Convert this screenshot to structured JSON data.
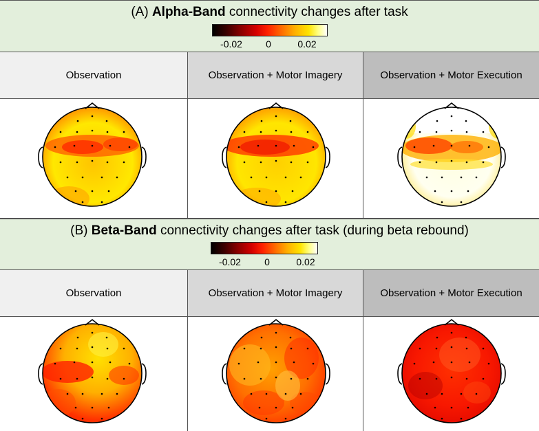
{
  "sections": [
    {
      "title_prefix": "(A) ",
      "title_bold": "Alpha-Band",
      "title_rest": " connectivity changes after task",
      "colorbar_ticks": [
        "-0.02",
        "0",
        "0.02"
      ],
      "conditions": [
        "Observation",
        "Observation + Motor Imagery",
        "Observation + Motor Execution"
      ]
    },
    {
      "title_prefix": "(B) ",
      "title_bold": "Beta-Band",
      "title_rest": " connectivity changes after task (during beta rebound)",
      "colorbar_ticks": [
        "-0.02",
        "0",
        "0.02"
      ],
      "conditions": [
        "Observation",
        "Observation + Motor Imagery",
        "Observation + Motor Execution"
      ]
    }
  ],
  "colors": {
    "header_bg": "#e3efdc",
    "cond0_bg": "#f0f0f0",
    "cond1_bg": "#d8d8d8",
    "cond2_bg": "#bdbdbd"
  }
}
